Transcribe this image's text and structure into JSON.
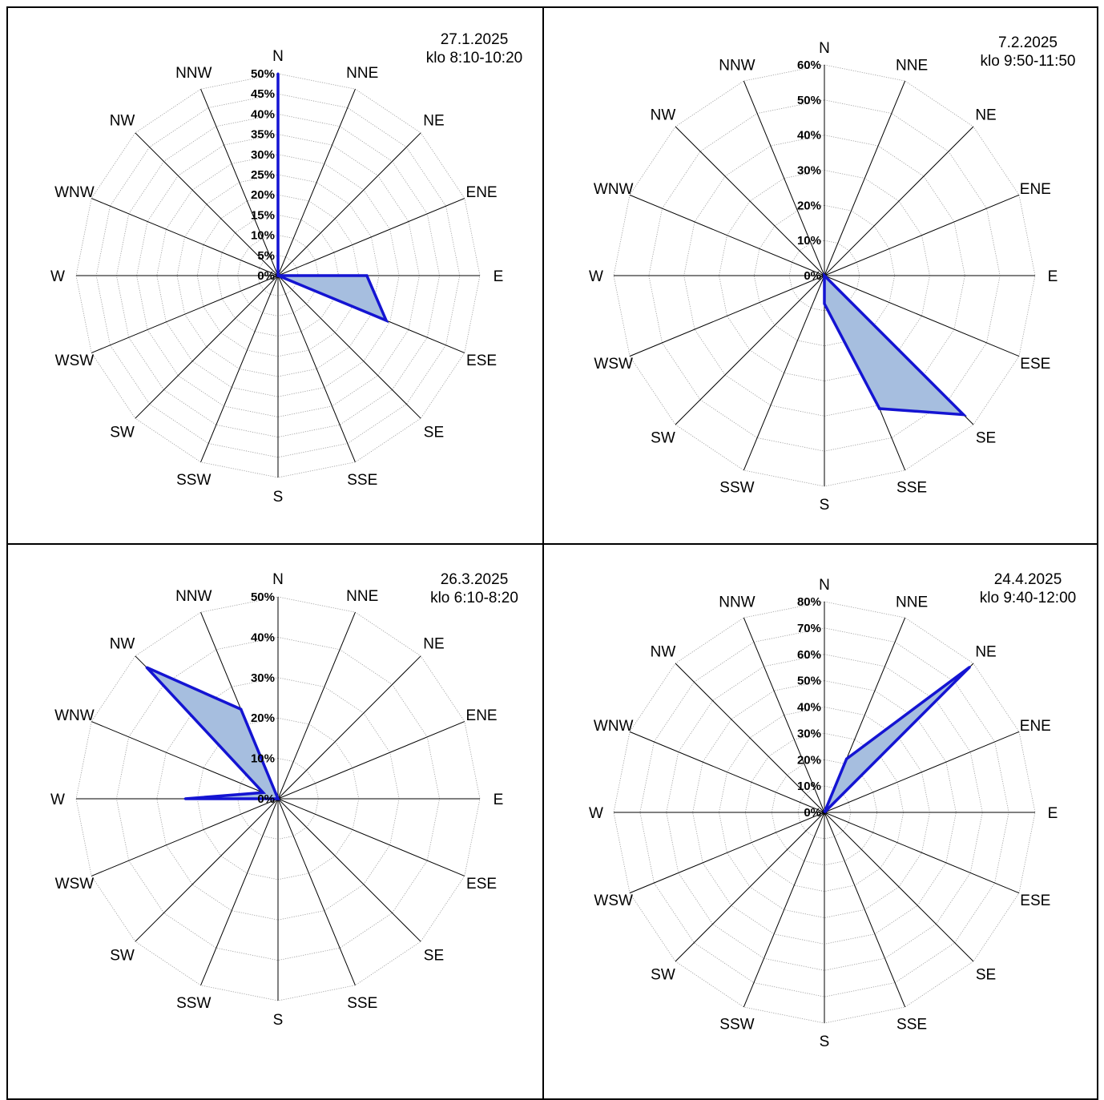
{
  "chart_data": [
    {
      "type": "radar",
      "title": "27.1.2025",
      "subtitle": "klo 8:10-10:20",
      "directions": [
        "N",
        "NNE",
        "NE",
        "ENE",
        "E",
        "ESE",
        "SE",
        "SSE",
        "S",
        "SSW",
        "SW",
        "WSW",
        "W",
        "WNW",
        "NW",
        "NNW"
      ],
      "ticks": [
        "0%",
        "5%",
        "10%",
        "15%",
        "20%",
        "25%",
        "30%",
        "35%",
        "40%",
        "45%",
        "50%"
      ],
      "ylim": [
        0,
        50
      ],
      "grid": true,
      "series": [
        {
          "values": [
            50,
            0,
            0,
            0,
            22,
            29,
            0,
            0,
            0,
            0,
            0,
            0,
            0,
            0,
            0,
            0
          ]
        }
      ]
    },
    {
      "type": "radar",
      "title": "7.2.2025",
      "subtitle": "klo 9:50-11:50",
      "directions": [
        "N",
        "NNE",
        "NE",
        "ENE",
        "E",
        "ESE",
        "SE",
        "SSE",
        "S",
        "SSW",
        "SW",
        "WSW",
        "W",
        "WNW",
        "NW",
        "NNW"
      ],
      "ticks": [
        "0%",
        "10%",
        "20%",
        "30%",
        "40%",
        "50%",
        "60%"
      ],
      "ylim": [
        0,
        60
      ],
      "grid": true,
      "series": [
        {
          "values": [
            0,
            0,
            0,
            0,
            0,
            0,
            56,
            41,
            8,
            0,
            0,
            0,
            0,
            0,
            0,
            0
          ]
        }
      ]
    },
    {
      "type": "radar",
      "title": "26.3.2025",
      "subtitle": "klo 6:10-8:20",
      "directions": [
        "N",
        "NNE",
        "NE",
        "ENE",
        "E",
        "ESE",
        "SE",
        "SSE",
        "S",
        "SSW",
        "SW",
        "WSW",
        "W",
        "WNW",
        "NW",
        "NNW"
      ],
      "ticks": [
        "0%",
        "10%",
        "20%",
        "30%",
        "40%",
        "50%"
      ],
      "ylim": [
        0,
        50
      ],
      "grid": true,
      "series": [
        {
          "values": [
            0,
            0,
            0,
            0,
            0,
            0,
            0,
            0,
            0,
            0,
            0,
            0,
            23,
            4,
            46,
            24
          ]
        }
      ]
    },
    {
      "type": "radar",
      "title": "24.4.2025",
      "subtitle": "klo 9:40-12:00",
      "directions": [
        "N",
        "NNE",
        "NE",
        "ENE",
        "E",
        "ESE",
        "SE",
        "SSE",
        "S",
        "SSW",
        "SW",
        "WSW",
        "W",
        "WNW",
        "NW",
        "NNW"
      ],
      "ticks": [
        "0%",
        "10%",
        "20%",
        "30%",
        "40%",
        "50%",
        "60%",
        "70%",
        "80%"
      ],
      "ylim": [
        0,
        80
      ],
      "grid": true,
      "series": [
        {
          "values": [
            0,
            22,
            78,
            0,
            0,
            0,
            0,
            0,
            0,
            0,
            0,
            0,
            0,
            0,
            0,
            0
          ]
        }
      ]
    }
  ],
  "colors": {
    "series_line": "#1414d2",
    "series_fill": "#a6bedf",
    "spoke": "#000000",
    "grid": "#999999"
  }
}
